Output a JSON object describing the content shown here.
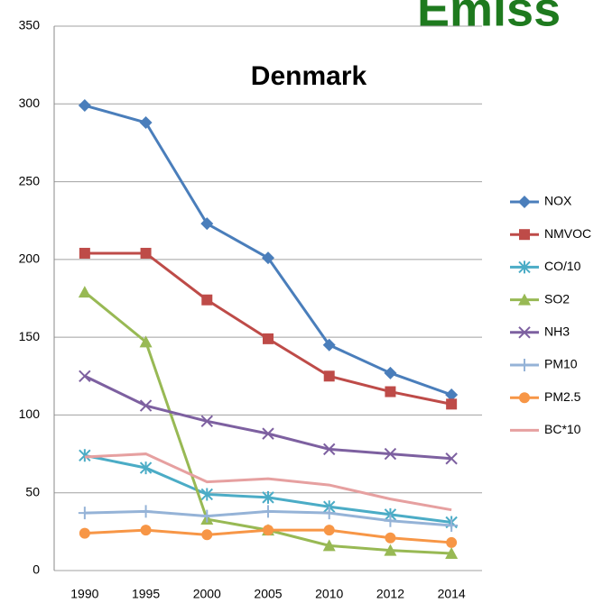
{
  "chart_data": {
    "type": "line",
    "title": "Denmark",
    "header": "Emiss",
    "categories": [
      "1990",
      "1995",
      "2000",
      "2005",
      "2010",
      "2012",
      "2014"
    ],
    "series": [
      {
        "name": "NOX",
        "color": "#4a7ebb",
        "marker": "diamond",
        "values": [
          299,
          288,
          223,
          201,
          145,
          127,
          113
        ]
      },
      {
        "name": "NMVOC",
        "color": "#be4b48",
        "marker": "square",
        "values": [
          204,
          204,
          174,
          149,
          125,
          115,
          107
        ]
      },
      {
        "name": "CO/10",
        "color": "#4bacc6",
        "marker": "asterisk",
        "values": [
          74,
          66,
          49,
          47,
          41,
          36,
          31
        ]
      },
      {
        "name": "SO2",
        "color": "#98b954",
        "marker": "triangle",
        "values": [
          179,
          147,
          33,
          26,
          16,
          13,
          11
        ]
      },
      {
        "name": "NH3",
        "color": "#7d60a0",
        "marker": "x",
        "values": [
          125,
          106,
          96,
          88,
          78,
          75,
          72
        ]
      },
      {
        "name": "PM10",
        "color": "#95b3d7",
        "marker": "plus",
        "values": [
          37,
          38,
          35,
          38,
          37,
          32,
          29
        ]
      },
      {
        "name": "PM2.5",
        "color": "#f79646",
        "marker": "circle",
        "values": [
          24,
          26,
          23,
          26,
          26,
          21,
          18
        ]
      },
      {
        "name": "BC*10",
        "color": "#e6a0a0",
        "marker": "none",
        "values": [
          73,
          75,
          57,
          59,
          55,
          46,
          39
        ]
      }
    ],
    "ylim": [
      0,
      350
    ],
    "yticks": [
      0,
      50,
      100,
      150,
      200,
      250,
      300,
      350
    ],
    "grid": true,
    "legend": "right"
  }
}
